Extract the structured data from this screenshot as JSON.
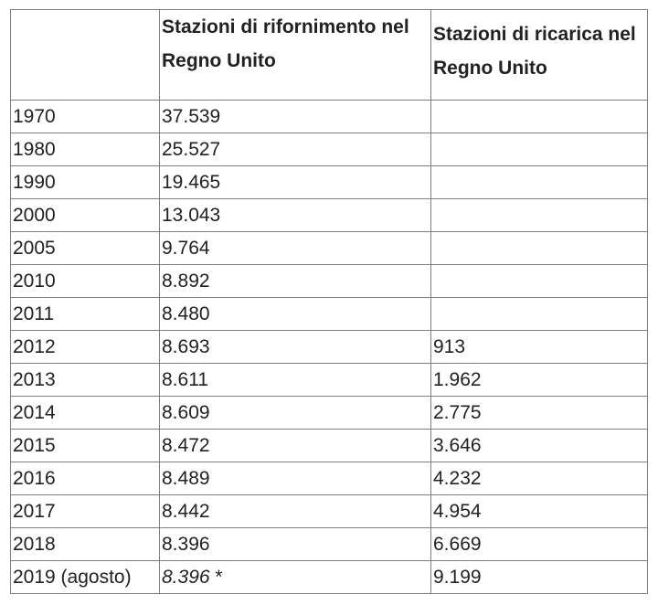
{
  "table": {
    "headers": {
      "year": "",
      "refuel": "Stazioni di rifornimento nel Regno Unito",
      "charge": "Stazioni di ricarica nel Regno Unito"
    },
    "rows": [
      {
        "year": "1970",
        "refuel": "37.539",
        "charge": ""
      },
      {
        "year": "1980",
        "refuel": "25.527",
        "charge": ""
      },
      {
        "year": "1990",
        "refuel": "19.465",
        "charge": ""
      },
      {
        "year": "2000",
        "refuel": "13.043",
        "charge": ""
      },
      {
        "year": "2005",
        "refuel": "9.764",
        "charge": ""
      },
      {
        "year": "2010",
        "refuel": "8.892",
        "charge": ""
      },
      {
        "year": "2011",
        "refuel": "8.480",
        "charge": ""
      },
      {
        "year": "2012",
        "refuel": "8.693",
        "charge": "913"
      },
      {
        "year": "2013",
        "refuel": "8.611",
        "charge": "1.962"
      },
      {
        "year": "2014",
        "refuel": "8.609",
        "charge": "2.775"
      },
      {
        "year": "2015",
        "refuel": "8.472",
        "charge": "3.646"
      },
      {
        "year": "2016",
        "refuel": "8.489",
        "charge": "4.232"
      },
      {
        "year": "2017",
        "refuel": "8.442",
        "charge": "4.954"
      },
      {
        "year": "2018",
        "refuel": "8.396",
        "charge": "6.669"
      },
      {
        "year": "2019 (agosto)",
        "refuel": "8.396",
        "refuel_note": "*",
        "charge": "9.199"
      }
    ]
  }
}
